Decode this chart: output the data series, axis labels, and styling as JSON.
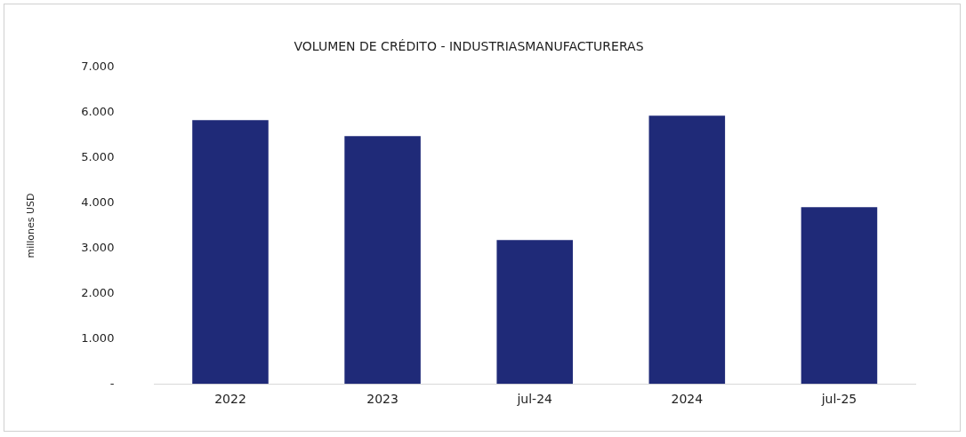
{
  "chart_data": {
    "type": "bar",
    "title": "VOLUMEN DE CRÉDITO - INDUSTRIASMANUFACTURERAS",
    "ylabel": "millones USD",
    "categories": [
      "2022",
      "2023",
      "jul-24",
      "2024",
      "jul-25"
    ],
    "values": [
      5830,
      5480,
      3180,
      5930,
      3910
    ],
    "color": "#1f2a78",
    "ylim": [
      0,
      7000
    ],
    "yticks": [
      {
        "value": 0,
        "label": "-"
      },
      {
        "value": 1000,
        "label": "1.000"
      },
      {
        "value": 2000,
        "label": "2.000"
      },
      {
        "value": 3000,
        "label": "3.000"
      },
      {
        "value": 4000,
        "label": "4.000"
      },
      {
        "value": 5000,
        "label": "5.000"
      },
      {
        "value": 6000,
        "label": "6.000"
      },
      {
        "value": 7000,
        "label": "7.000"
      }
    ],
    "grid": false,
    "legend": false
  }
}
